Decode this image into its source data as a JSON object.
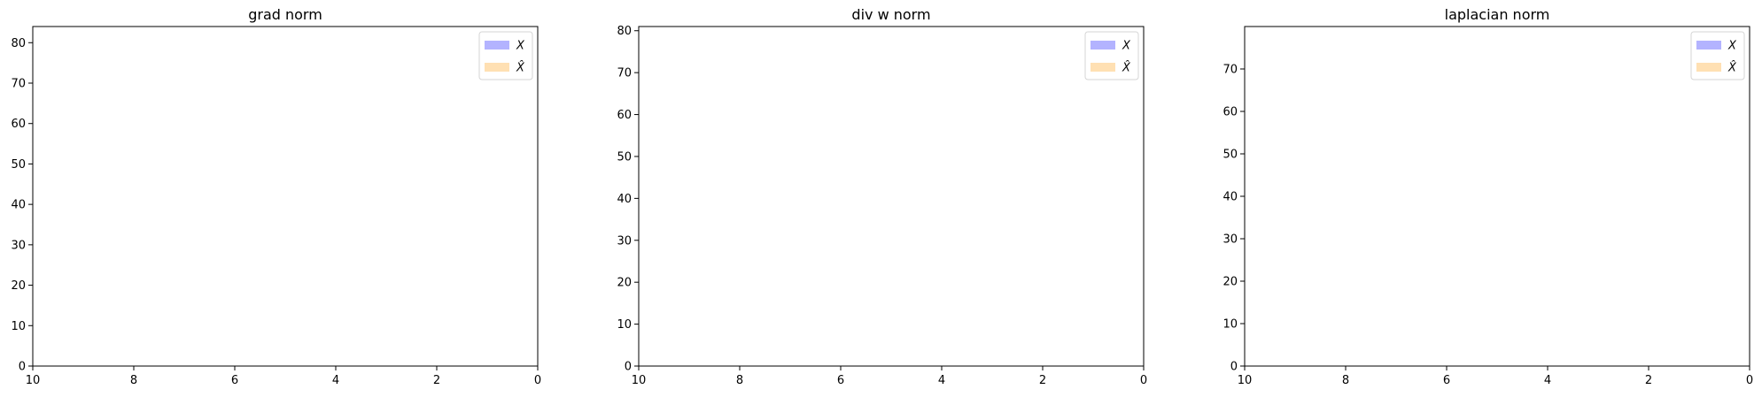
{
  "chart_data": [
    {
      "type": "histogram",
      "title": "grad norm",
      "xlabel": "",
      "ylabel": "",
      "xlim": [
        10,
        0
      ],
      "ylim": [
        0,
        84
      ],
      "x_ticks": [
        10,
        8,
        6,
        4,
        2,
        0
      ],
      "y_ticks": [
        0,
        10,
        20,
        30,
        40,
        50,
        60,
        70,
        80
      ],
      "grid": false,
      "legend_position": "upper-right",
      "series": [
        {
          "name": "X",
          "color": "#b3b3ff",
          "values": []
        },
        {
          "name": "X̂",
          "color": "#ffe0b3",
          "values": []
        }
      ]
    },
    {
      "type": "histogram",
      "title": "div w norm",
      "xlabel": "",
      "ylabel": "",
      "xlim": [
        10,
        0
      ],
      "ylim": [
        0,
        81
      ],
      "x_ticks": [
        10,
        8,
        6,
        4,
        2,
        0
      ],
      "y_ticks": [
        0,
        10,
        20,
        30,
        40,
        50,
        60,
        70,
        80
      ],
      "grid": false,
      "legend_position": "upper-right",
      "series": [
        {
          "name": "X",
          "color": "#b3b3ff",
          "values": []
        },
        {
          "name": "X̂",
          "color": "#ffe0b3",
          "values": []
        }
      ]
    },
    {
      "type": "histogram",
      "title": "laplacian norm",
      "xlabel": "",
      "ylabel": "",
      "xlim": [
        10,
        0
      ],
      "ylim": [
        0,
        80
      ],
      "x_ticks": [
        10,
        8,
        6,
        4,
        2,
        0
      ],
      "y_ticks": [
        0,
        10,
        20,
        30,
        40,
        50,
        60,
        70
      ],
      "grid": false,
      "legend_position": "upper-right",
      "series": [
        {
          "name": "X",
          "color": "#b3b3ff",
          "values": []
        },
        {
          "name": "X̂",
          "color": "#ffe0b3",
          "values": []
        }
      ]
    }
  ]
}
